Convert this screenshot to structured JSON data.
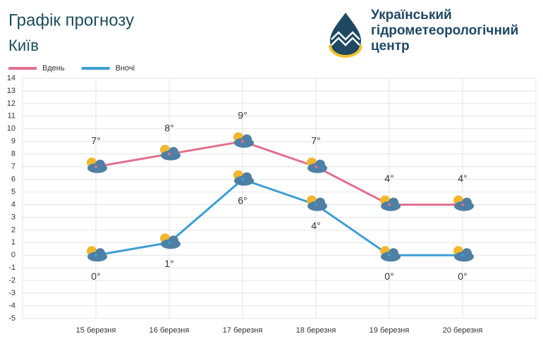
{
  "chart_data": {
    "type": "line",
    "title": "Графік прогнозу",
    "subtitle": "Київ",
    "categories": [
      "15 березня",
      "16 березня",
      "17 березня",
      "18 березня",
      "19 березня",
      "20 березня"
    ],
    "series": [
      {
        "name": "Вдень",
        "color": "#e2708e",
        "values": [
          7,
          8,
          9,
          7,
          4,
          4
        ],
        "value_labels": [
          "7°",
          "8°",
          "9°",
          "7°",
          "4°",
          "4°"
        ]
      },
      {
        "name": "Вночі",
        "color": "#3d9fd3",
        "values": [
          0,
          1,
          6,
          4,
          0,
          0
        ],
        "value_labels": [
          "0°",
          "1°",
          "6°",
          "4°",
          "0°",
          "0°"
        ]
      }
    ],
    "ylim": [
      -5,
      14
    ],
    "yticks": [
      -5,
      -4,
      -3,
      -2,
      -1,
      0,
      1,
      2,
      3,
      4,
      5,
      6,
      7,
      8,
      9,
      10,
      11,
      12,
      13,
      14
    ],
    "grid": true,
    "legend": "top-left"
  },
  "header": {
    "org_lines": [
      "Український",
      "гідрометеорологічний",
      "центр"
    ]
  }
}
